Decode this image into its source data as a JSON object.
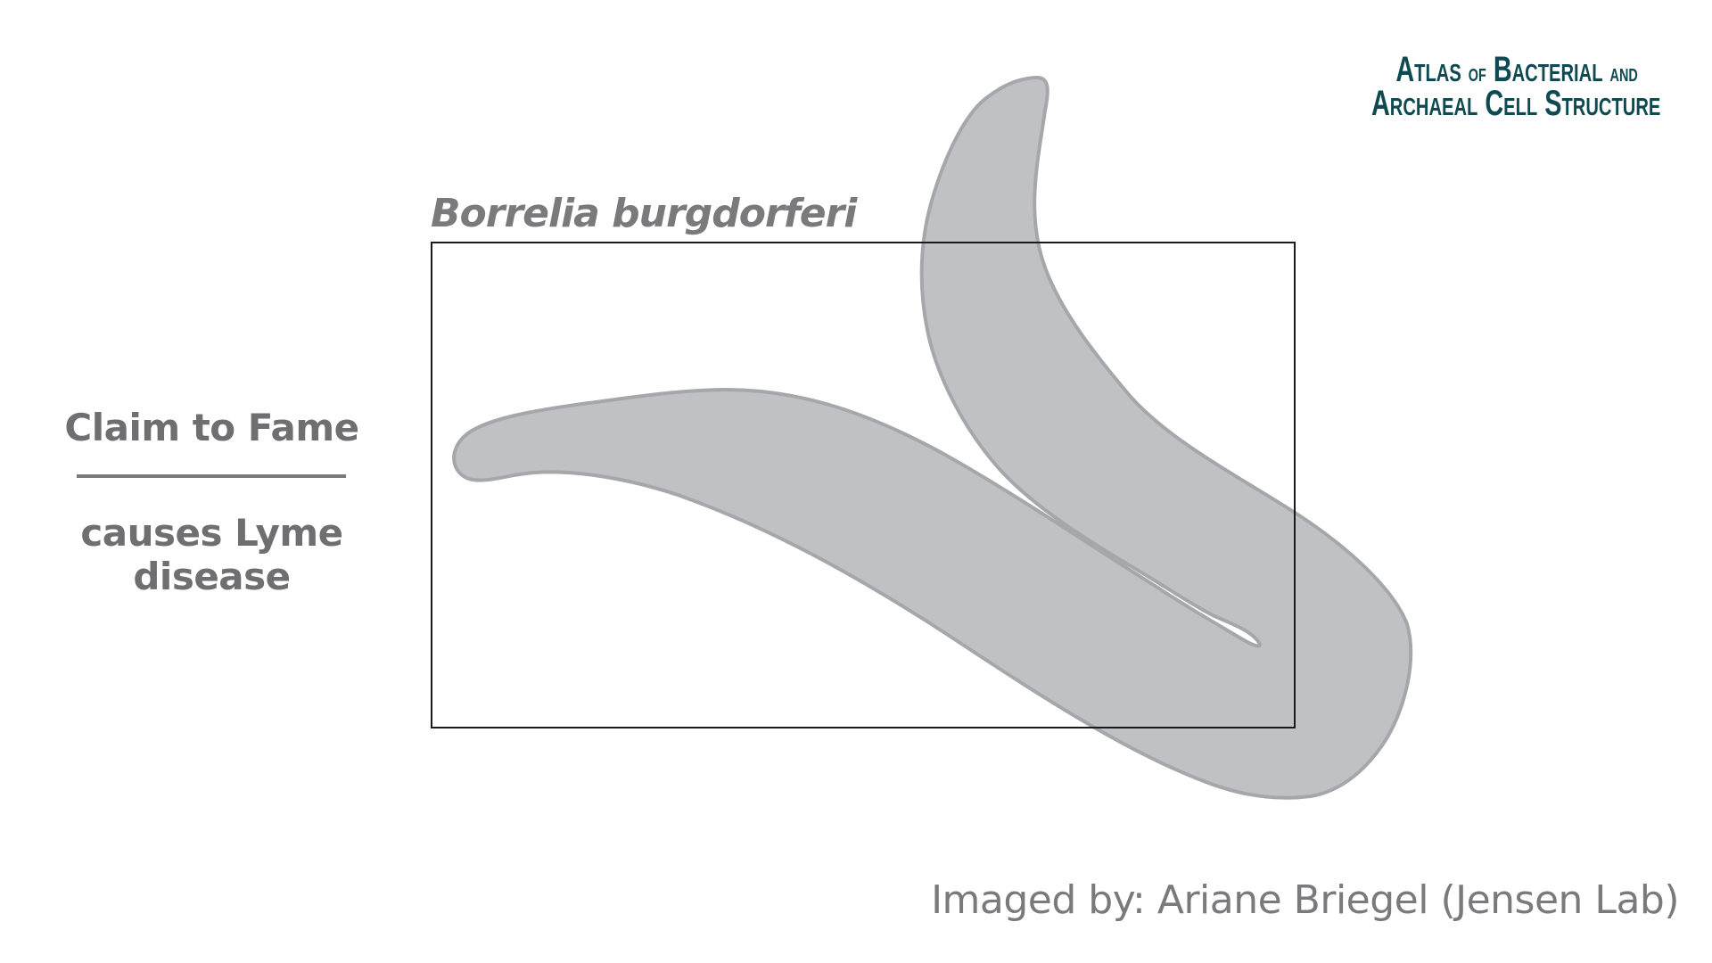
{
  "logo": {
    "line1_big_a": "A",
    "line1_rest": "tlas",
    "line1_of": "of",
    "line1_big_b": "B",
    "line1_bacterial": "acterial",
    "line1_and": "and",
    "line2_big_a": "A",
    "line2_rchaeal": "rchaeal",
    "line2_big_c": "C",
    "line2_ell": "ell",
    "line2_big_s": "S",
    "line2_tructure": "tructure",
    "color": "#0f4a52"
  },
  "species": {
    "name": "Borrelia burgdorferi"
  },
  "fame": {
    "heading": "Claim to Fame",
    "text": "causes Lyme disease"
  },
  "credit": {
    "text": "Imaged by: Ariane Briegel (Jensen Lab)"
  },
  "colors": {
    "cell_fill": "#c0c1c5",
    "cell_stroke": "#a6a7ab",
    "text_gray": "#7a7a7c",
    "frame": "#1a1a1a"
  }
}
